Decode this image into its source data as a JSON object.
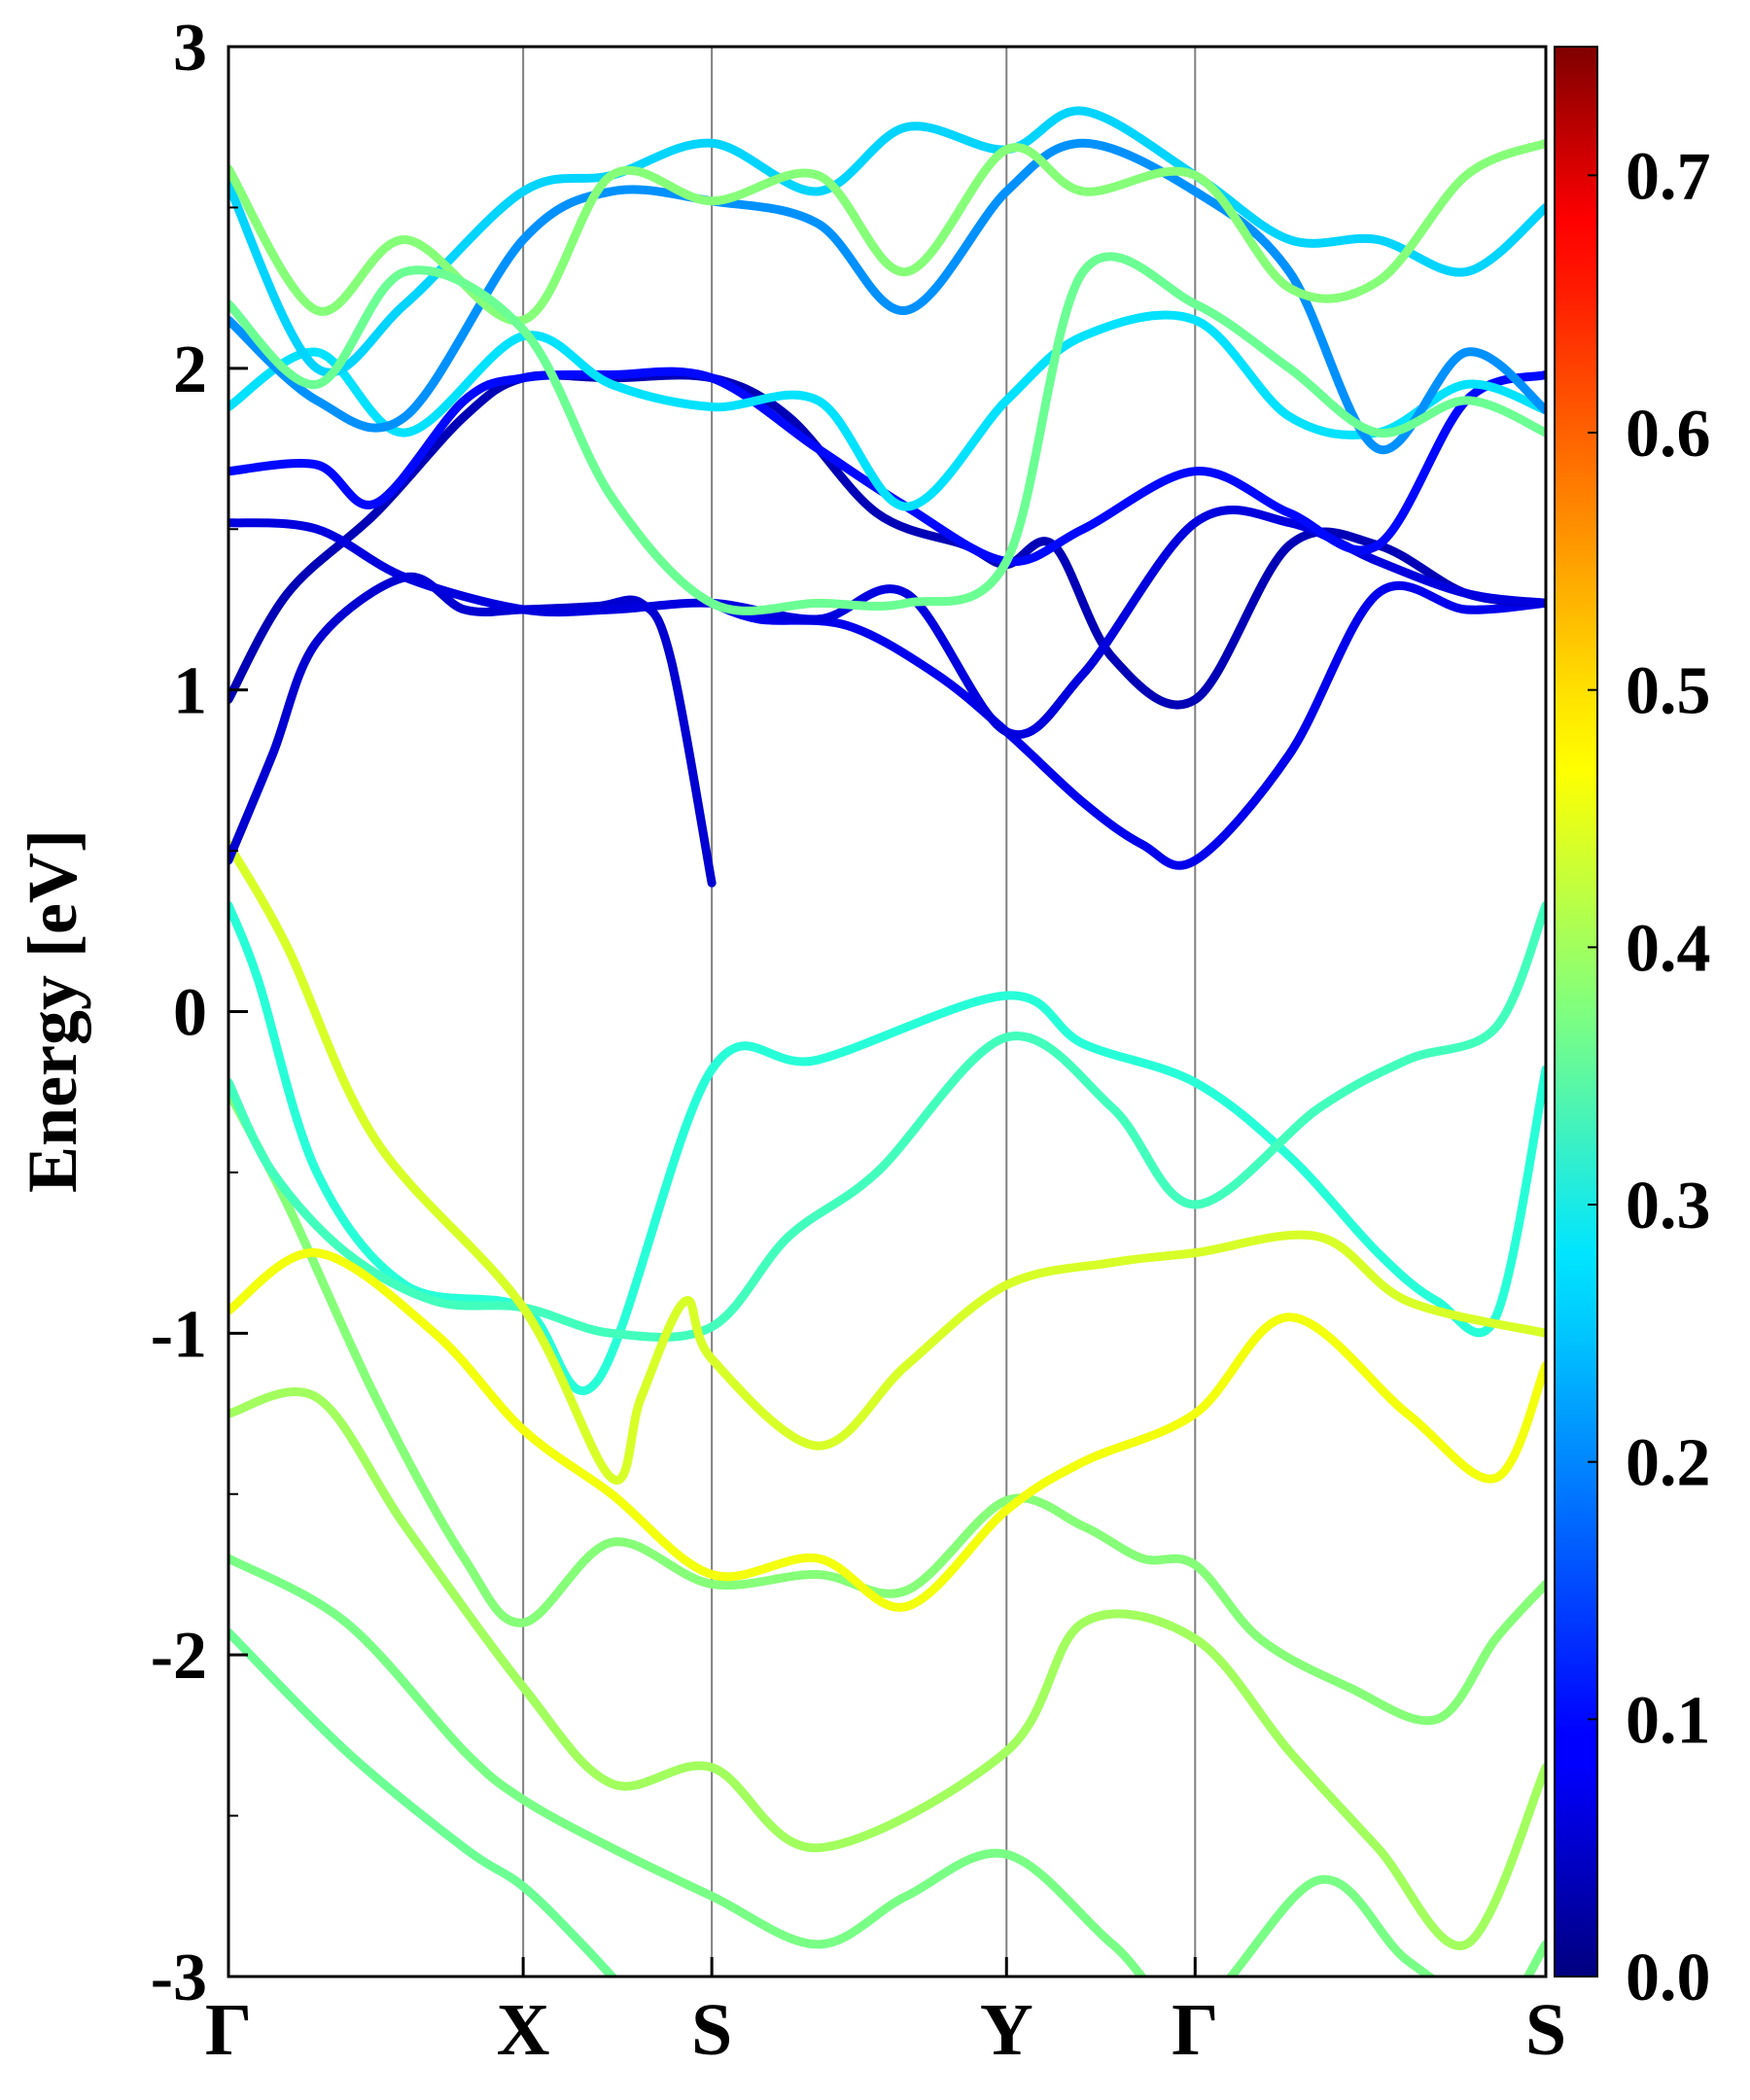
{
  "chart_data": {
    "type": "line",
    "title": "",
    "xlabel": "",
    "ylabel": "Energy [eV]",
    "ylim": [
      -3,
      3
    ],
    "yticks": [
      "-3",
      "-2",
      "-1",
      "0",
      "1",
      "2",
      "3"
    ],
    "kpath": [
      {
        "label": "Γ",
        "x": 0.0
      },
      {
        "label": "X",
        "x": 1.0
      },
      {
        "label": "S",
        "x": 1.64
      },
      {
        "label": "Y",
        "x": 2.64
      },
      {
        "label": "Γ",
        "x": 3.28
      },
      {
        "label": "S",
        "x": 4.47
      }
    ],
    "colorbar": {
      "colormap": "jet",
      "range": [
        0.0,
        0.75
      ],
      "ticks": [
        "0.0",
        "0.1",
        "0.2",
        "0.3",
        "0.4",
        "0.5",
        "0.6",
        "0.7"
      ]
    },
    "grid": false,
    "series": [
      {
        "x": [
          0.0,
          0.2,
          0.5,
          0.8,
          1.0,
          1.3,
          1.64,
          2.0,
          2.3,
          2.64,
          2.9,
          3.1,
          3.28,
          3.5,
          3.8,
          4.1,
          4.3,
          4.47
        ],
        "y": [
          -0.25,
          -0.6,
          -1.2,
          -1.7,
          -1.9,
          -1.65,
          -1.78,
          -1.75,
          -1.8,
          -1.52,
          -1.6,
          -1.7,
          -1.72,
          -1.95,
          -2.1,
          -2.2,
          -1.95,
          -1.78
        ],
        "c": 0.38
      },
      {
        "x": [
          0.0,
          0.1,
          0.3,
          0.6,
          1.0,
          1.25,
          1.64,
          2.0,
          2.64,
          2.9,
          3.28,
          3.6,
          3.9,
          4.1,
          4.3,
          4.47
        ],
        "y": [
          0.33,
          0.1,
          -0.5,
          -0.85,
          -0.92,
          -1.15,
          -0.18,
          -0.15,
          0.05,
          -0.1,
          -0.22,
          -0.45,
          -0.75,
          -0.9,
          -0.95,
          -0.18
        ],
        "c": 0.31
      },
      {
        "x": [
          0.0,
          0.15,
          0.4,
          0.7,
          1.0,
          1.3,
          1.64,
          1.9,
          2.2,
          2.64,
          3.0,
          3.28,
          3.7,
          4.0,
          4.3,
          4.47
        ],
        "y": [
          -0.22,
          -0.5,
          -0.75,
          -0.9,
          -0.92,
          -1.0,
          -0.98,
          -0.7,
          -0.5,
          -0.08,
          -0.3,
          -0.6,
          -0.3,
          -0.15,
          -0.05,
          0.33
        ],
        "c": 0.33
      },
      {
        "x": [
          0.0,
          0.2,
          0.5,
          1.0,
          1.3,
          1.4,
          1.55,
          1.64,
          2.0,
          2.3,
          2.64,
          3.0,
          3.28,
          3.7,
          4.0,
          4.47
        ],
        "y": [
          0.52,
          0.2,
          -0.4,
          -0.92,
          -1.45,
          -1.2,
          -0.9,
          -1.08,
          -1.35,
          -1.1,
          -0.85,
          -0.78,
          -0.75,
          -0.7,
          -0.9,
          -1.0
        ],
        "c": 0.44
      },
      {
        "x": [
          0.0,
          0.3,
          0.7,
          1.0,
          1.3,
          1.64,
          2.0,
          2.3,
          2.64,
          2.9,
          3.28,
          3.6,
          4.0,
          4.3,
          4.47
        ],
        "y": [
          -0.93,
          -0.75,
          -1.0,
          -1.3,
          -1.5,
          -1.75,
          -1.7,
          -1.85,
          -1.55,
          -1.4,
          -1.25,
          -0.95,
          -1.25,
          -1.45,
          -1.1
        ],
        "c": 0.46
      },
      {
        "x": [
          0.0,
          0.3,
          0.6,
          1.0,
          1.3,
          1.64,
          2.0,
          2.64,
          2.9,
          3.28,
          3.6,
          3.9,
          4.2,
          4.47
        ],
        "y": [
          -1.25,
          -1.2,
          -1.6,
          -2.1,
          -2.4,
          -2.35,
          -2.6,
          -2.3,
          -1.9,
          -1.95,
          -2.3,
          -2.6,
          -2.9,
          -2.35
        ],
        "c": 0.4
      },
      {
        "x": [
          0.0,
          0.4,
          0.8,
          1.0,
          1.3,
          1.64,
          2.0,
          2.3,
          2.64,
          3.0,
          3.28,
          3.7,
          4.0,
          4.3,
          4.47
        ],
        "y": [
          -1.7,
          -1.9,
          -2.3,
          -2.45,
          -2.6,
          -2.75,
          -2.9,
          -2.75,
          -2.62,
          -2.9,
          -3.1,
          -2.7,
          -2.95,
          -3.1,
          -2.9
        ],
        "c": 0.37
      },
      {
        "x": [
          0.0,
          0.4,
          0.8,
          1.0,
          1.2,
          1.4
        ],
        "y": [
          -1.93,
          -2.3,
          -2.6,
          -2.72,
          -2.9,
          -3.1
        ],
        "c": 0.36
      },
      {
        "x": [
          0.0,
          0.15,
          0.3,
          0.6,
          0.8,
          1.0,
          1.25,
          1.4,
          1.5,
          1.64
        ],
        "y": [
          0.47,
          0.8,
          1.15,
          1.35,
          1.25,
          1.25,
          1.26,
          1.27,
          1.1,
          0.4
        ],
        "c": 0.06
      },
      {
        "x": [
          1.64,
          1.8,
          2.1,
          2.4,
          2.64,
          2.9,
          3.1,
          3.28,
          3.6,
          3.9,
          4.2,
          4.47
        ],
        "y": [
          1.27,
          1.22,
          1.2,
          1.05,
          0.87,
          0.65,
          0.52,
          0.47,
          0.8,
          1.3,
          1.25,
          1.27
        ],
        "c": 0.08
      },
      {
        "x": [
          0.0,
          0.2,
          0.5,
          0.8,
          1.0,
          1.3,
          1.64,
          1.9,
          2.2,
          2.5,
          2.64,
          2.8,
          3.0,
          3.28,
          3.6,
          3.9,
          4.2,
          4.47
        ],
        "y": [
          0.97,
          1.3,
          1.55,
          1.85,
          1.97,
          1.97,
          1.97,
          1.85,
          1.55,
          1.45,
          1.39,
          1.45,
          1.1,
          0.97,
          1.45,
          1.45,
          1.3,
          1.27
        ],
        "c": 0.04
      },
      {
        "x": [
          0.0,
          0.3,
          0.6,
          1.0,
          1.3,
          1.64,
          2.0,
          2.3,
          2.64,
          2.9,
          3.28,
          3.6,
          3.9,
          4.2,
          4.47
        ],
        "y": [
          1.52,
          1.5,
          1.35,
          1.25,
          1.25,
          1.27,
          1.22,
          1.3,
          0.87,
          1.05,
          1.52,
          1.52,
          1.4,
          1.3,
          1.27
        ],
        "c": 0.07
      },
      {
        "x": [
          0.0,
          0.3,
          0.5,
          0.8,
          1.0,
          1.3,
          1.64,
          2.0,
          2.3,
          2.64,
          2.9,
          3.28,
          3.6,
          3.9,
          4.2,
          4.47
        ],
        "y": [
          1.68,
          1.7,
          1.58,
          1.9,
          1.97,
          1.98,
          1.97,
          1.75,
          1.57,
          1.4,
          1.5,
          1.68,
          1.55,
          1.45,
          1.9,
          1.98
        ],
        "c": 0.1
      },
      {
        "x": [
          0.0,
          0.3,
          0.6,
          1.0,
          1.3,
          1.64,
          2.0,
          2.3,
          2.64,
          2.9,
          3.28,
          3.6,
          3.9,
          4.2,
          4.47
        ],
        "y": [
          1.88,
          2.05,
          1.8,
          2.1,
          1.95,
          1.88,
          1.9,
          1.57,
          1.9,
          2.1,
          2.15,
          1.85,
          1.8,
          1.95,
          1.87
        ],
        "c": 0.26
      },
      {
        "x": [
          0.0,
          0.3,
          0.6,
          1.0,
          1.3,
          1.64,
          2.0,
          2.3,
          2.64,
          2.9,
          3.28,
          3.6,
          3.9,
          4.2,
          4.47
        ],
        "y": [
          2.15,
          1.9,
          1.85,
          2.4,
          2.55,
          2.52,
          2.45,
          2.18,
          2.55,
          2.7,
          2.55,
          2.3,
          1.75,
          2.05,
          1.87
        ],
        "c": 0.2
      },
      {
        "x": [
          0.0,
          0.3,
          0.6,
          1.0,
          1.3,
          1.64,
          2.0,
          2.3,
          2.64,
          2.9,
          3.28,
          3.6,
          3.9,
          4.2,
          4.47
        ],
        "y": [
          2.57,
          2.0,
          2.2,
          2.55,
          2.6,
          2.7,
          2.55,
          2.75,
          2.68,
          2.8,
          2.6,
          2.4,
          2.4,
          2.3,
          2.5
        ],
        "c": 0.25
      },
      {
        "x": [
          0.0,
          0.3,
          0.6,
          1.0,
          1.3,
          1.64,
          2.0,
          2.3,
          2.64,
          2.9,
          3.28,
          3.6,
          3.9,
          4.2,
          4.47
        ],
        "y": [
          2.62,
          2.18,
          2.4,
          2.15,
          2.6,
          2.52,
          2.6,
          2.3,
          2.68,
          2.55,
          2.6,
          2.25,
          2.27,
          2.6,
          2.7
        ],
        "c": 0.38
      },
      {
        "x": [
          0.0,
          0.3,
          0.6,
          1.0,
          1.3,
          1.64,
          2.0,
          2.3,
          2.64,
          2.9,
          3.28,
          3.6,
          3.9,
          4.2,
          4.47
        ],
        "y": [
          2.2,
          1.95,
          2.3,
          2.12,
          1.6,
          1.27,
          1.27,
          1.27,
          1.4,
          2.3,
          2.2,
          2.0,
          1.8,
          1.9,
          1.8
        ],
        "c": 0.36
      }
    ]
  }
}
